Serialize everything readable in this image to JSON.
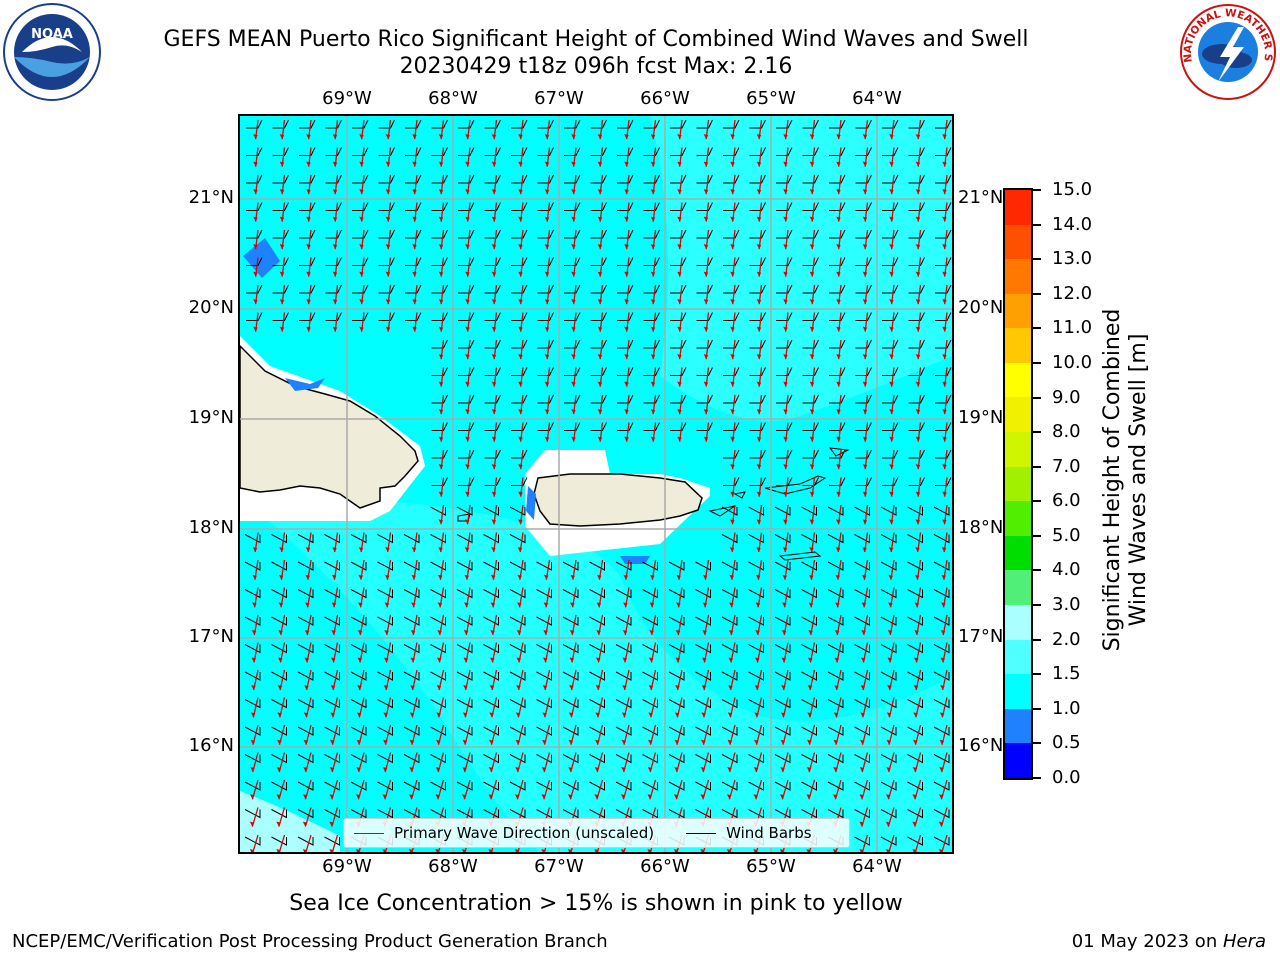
{
  "header": {
    "title_line1": "GEFS MEAN Puerto Rico Significant Height of Combined Wind Waves and Swell",
    "title_line2": "20230429 t18z 096h fcst   Max: 2.16"
  },
  "logos": {
    "noaa_text": "NOAA",
    "nws_text": "NATIONAL WEATHER SERVICE"
  },
  "map": {
    "lon_ticks": [
      "69°W",
      "68°W",
      "67°W",
      "66°W",
      "65°W",
      "64°W"
    ],
    "lat_ticks": [
      "21°N",
      "20°N",
      "19°N",
      "18°N",
      "17°N",
      "16°N"
    ],
    "ocean_color": "#00ffff",
    "land_color": "#efedd9",
    "arrow_color": "#e00000",
    "barb_color": "#000000"
  },
  "legend": {
    "wave_label": "Primary Wave Direction (unscaled)",
    "barb_label": "Wind Barbs"
  },
  "colorbar": {
    "label_line1": "Significant Height of Combined",
    "label_line2": "Wind Waves and Swell [m]",
    "ticks": [
      "0.0",
      "0.5",
      "1.0",
      "1.5",
      "2.0",
      "3.0",
      "4.0",
      "5.0",
      "6.0",
      "7.0",
      "8.0",
      "9.0",
      "10.0",
      "11.0",
      "12.0",
      "13.0",
      "14.0",
      "15.0"
    ],
    "colors": [
      "#0000ff",
      "#1e82ff",
      "#00ffff",
      "#50ffff",
      "#aaffff",
      "#50f078",
      "#00dd00",
      "#50ee00",
      "#a0f000",
      "#d0f500",
      "#f0f000",
      "#ffff00",
      "#ffc800",
      "#ffa000",
      "#ff7800",
      "#ff5000",
      "#ff2800"
    ]
  },
  "footnote": "Sea Ice Concentration > 15% is shown in pink to yellow",
  "footer": {
    "left": "NCEP/EMC/Verification Post Processing Product Generation Branch",
    "right_date": "01 May 2023 on ",
    "right_machine": "Hera"
  }
}
